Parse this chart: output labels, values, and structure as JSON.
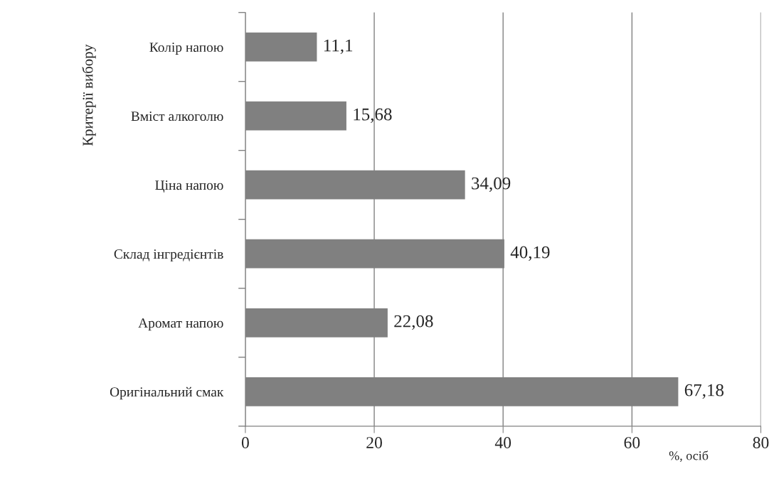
{
  "chart_data": {
    "type": "bar",
    "orientation": "horizontal",
    "categories": [
      "Колір напою",
      "Вміст алкоголю",
      "Ціна напою",
      "Склад інгредієнтів",
      "Аромат напою",
      "Оригінальний смак"
    ],
    "values": [
      11.1,
      15.68,
      34.09,
      40.19,
      22.08,
      67.18
    ],
    "value_labels": [
      "11,1",
      "15,68",
      "34,09",
      "40,19",
      "22,08",
      "67,18"
    ],
    "color": "#808080",
    "xlim": [
      0,
      80
    ],
    "xticks": [
      0,
      20,
      40,
      60,
      80
    ],
    "xlabel": "%, осіб",
    "ylabel": "Критерії вибору",
    "grid": "x"
  }
}
